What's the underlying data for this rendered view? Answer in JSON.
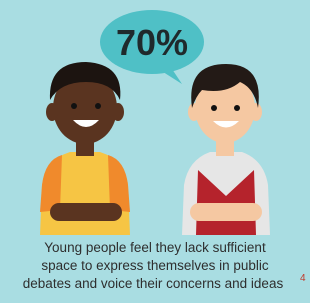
{
  "stat": "70%",
  "caption": {
    "lines": [
      "Young people feel they lack sufficient",
      "space to express themselves in public",
      "debates and voice their concerns and ideas"
    ],
    "footnote": "4"
  }
}
